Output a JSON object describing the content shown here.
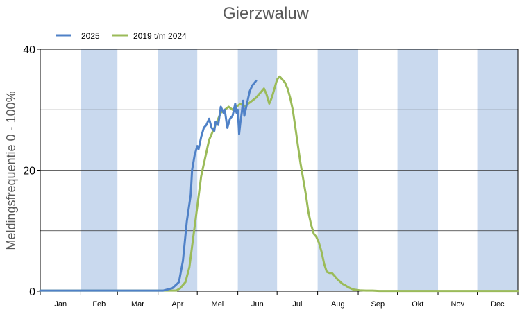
{
  "chart_data": {
    "type": "line",
    "title": "Gierzwaluw",
    "ylabel": "Meldingsfrequentie 0 - 100%",
    "xlabel": "",
    "ylim": [
      0,
      40
    ],
    "y_ticks": [
      0,
      20,
      40
    ],
    "y_gridlines": [
      10,
      20,
      30
    ],
    "x_unit": "day_of_year",
    "xlim": [
      1,
      366
    ],
    "months": [
      "Jan",
      "Feb",
      "Mar",
      "Apr",
      "Mei",
      "Jun",
      "Jul",
      "Aug",
      "Sep",
      "Okt",
      "Nov",
      "Dec"
    ],
    "shaded_months": [
      "Feb",
      "Apr",
      "Jun",
      "Aug",
      "Okt",
      "Dec"
    ],
    "shade_color": "#c9d9ee",
    "legend_position": "top-left",
    "series": [
      {
        "name": "2025",
        "color": "#4f81c7",
        "x": [
          1,
          95,
          102,
          107,
          110,
          113,
          116,
          117,
          119,
          121,
          122,
          124,
          126,
          128,
          130,
          132,
          134,
          135,
          137,
          139,
          141,
          142,
          144,
          146,
          148,
          149,
          150,
          151,
          152,
          153,
          154,
          155,
          156,
          157,
          158,
          159,
          160,
          161,
          162,
          163,
          165,
          166
        ],
        "values": [
          0.1,
          0.1,
          0.5,
          1.5,
          5,
          11.5,
          16,
          20,
          22.5,
          24,
          23.5,
          25.5,
          27,
          27.5,
          28.5,
          27,
          26.5,
          28,
          27.5,
          30.5,
          29.5,
          30,
          27,
          28.5,
          29,
          30,
          31,
          29.5,
          30,
          26,
          28,
          29.5,
          31.5,
          29,
          30,
          31,
          32,
          33,
          33.5,
          34,
          34.5,
          34.8
        ]
      },
      {
        "name": "2019 t/m 2024",
        "color": "#9bbb59",
        "x": [
          1,
          105,
          108,
          112,
          115,
          118,
          121,
          124,
          127,
          130,
          133,
          136,
          139,
          142,
          145,
          148,
          151,
          154,
          157,
          160,
          163,
          166,
          168,
          170,
          172,
          174,
          176,
          178,
          180,
          182,
          184,
          186,
          188,
          190,
          192,
          194,
          196,
          198,
          200,
          202,
          204,
          206,
          208,
          210,
          212,
          214,
          216,
          218,
          220,
          222,
          224,
          226,
          228,
          230,
          232,
          234,
          236,
          238,
          240,
          245,
          250,
          255,
          260,
          366
        ],
        "values": [
          0.1,
          0.1,
          0.5,
          1.5,
          4,
          9,
          14,
          19,
          22,
          25,
          26.5,
          28,
          29.5,
          30,
          30.5,
          30,
          30.5,
          31,
          30.5,
          31,
          31.5,
          32,
          32.5,
          33,
          33.5,
          32.5,
          31,
          32,
          33.5,
          35,
          35.5,
          35,
          34.5,
          33.5,
          32,
          30,
          27,
          24,
          21,
          18.5,
          16,
          13,
          11,
          9.5,
          9,
          8,
          6.5,
          4.5,
          3.2,
          3,
          3,
          2.5,
          2,
          1.6,
          1.2,
          1,
          0.7,
          0.5,
          0.3,
          0.15,
          0.1,
          0.1,
          0.05,
          0.05
        ]
      }
    ]
  }
}
